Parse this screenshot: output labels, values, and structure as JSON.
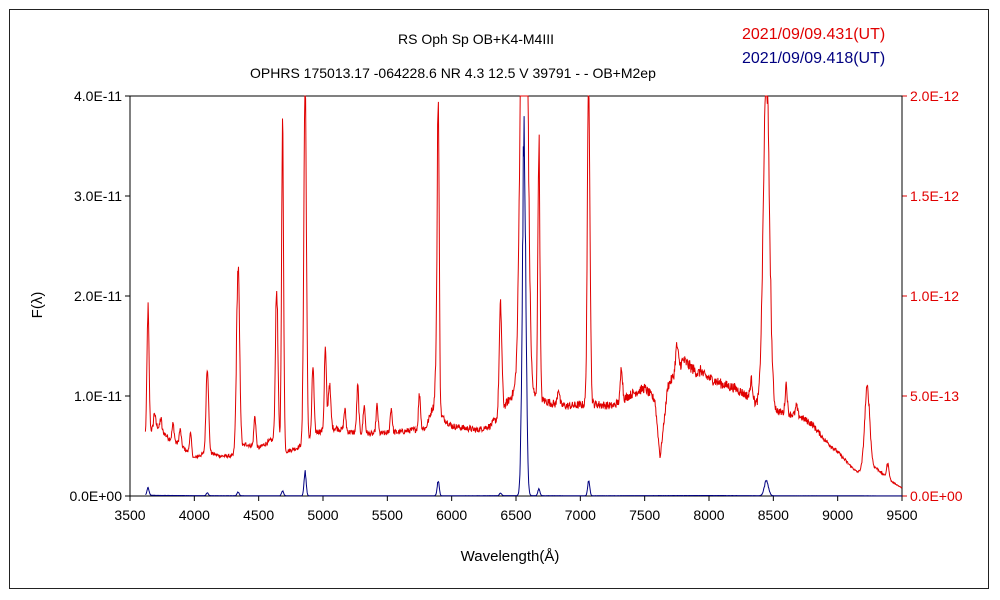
{
  "chart_data": {
    "type": "line",
    "title": "RS Oph    Sp OB+K4-M4III",
    "subtitle": "OPHRS 175013.17 -064228.6 NR 4.3 12.5 V 39791 - - OB+M2ep",
    "xlabel": "Wavelength(Å)",
    "ylabel": "F(λ)",
    "xlim": [
      3500,
      9500
    ],
    "ylim_left": [
      0,
      4e-11
    ],
    "ylim_right": [
      0,
      2e-12
    ],
    "x_ticks": [
      "3500",
      "4000",
      "4500",
      "5000",
      "5500",
      "6000",
      "6500",
      "7000",
      "7500",
      "8000",
      "8500",
      "9000",
      "9500"
    ],
    "y_left_ticks": [
      "0.0E+00",
      "1.0E-11",
      "2.0E-11",
      "3.0E-11",
      "4.0E-11"
    ],
    "y_right_ticks": [
      "0.0E+00",
      "5.0E-13",
      "1.0E-12",
      "1.5E-12",
      "2.0E-12"
    ],
    "grid": false,
    "legend": [
      {
        "label": "2021/09/09.431(UT)",
        "color": "#e00000",
        "axis": "right"
      },
      {
        "label": "2021/09/09.418(UT)",
        "color": "#000080",
        "axis": "left"
      }
    ],
    "series": [
      {
        "color": "#e00000",
        "axis": "right",
        "base": [
          [
            3620,
            2.9e-13
          ],
          [
            3700,
            3.6e-13
          ],
          [
            3800,
            2.9e-13
          ],
          [
            3900,
            2.5e-13
          ],
          [
            4000,
            1.9e-13
          ],
          [
            4100,
            2.2e-13
          ],
          [
            4200,
            2e-13
          ],
          [
            4300,
            2e-13
          ],
          [
            4400,
            2.6e-13
          ],
          [
            4500,
            2.4e-13
          ],
          [
            4600,
            2.8e-13
          ],
          [
            4700,
            2.2e-13
          ],
          [
            4800,
            2.4e-13
          ],
          [
            4950,
            3.2e-13
          ],
          [
            5100,
            3.4e-13
          ],
          [
            5200,
            3.2e-13
          ],
          [
            5400,
            3.1e-13
          ],
          [
            5600,
            3.2e-13
          ],
          [
            5800,
            3.4e-13
          ],
          [
            5850,
            4.4e-13
          ],
          [
            6000,
            3.5e-13
          ],
          [
            6200,
            3.3e-13
          ],
          [
            6300,
            3.5e-13
          ],
          [
            6400,
            4.4e-13
          ],
          [
            6500,
            5.3e-13
          ],
          [
            6700,
            4.8e-13
          ],
          [
            6800,
            4.6e-13
          ],
          [
            6900,
            4.5e-13
          ],
          [
            7100,
            4.6e-13
          ],
          [
            7250,
            4.5e-13
          ],
          [
            7400,
            5.1e-13
          ],
          [
            7500,
            5.4e-13
          ],
          [
            7580,
            4.8e-13
          ],
          [
            7620,
            1.9e-13
          ],
          [
            7680,
            5.5e-13
          ],
          [
            7800,
            6.8e-13
          ],
          [
            7900,
            6.2e-13
          ],
          [
            8000,
            5.9e-13
          ],
          [
            8100,
            5.6e-13
          ],
          [
            8200,
            5.4e-13
          ],
          [
            8300,
            5e-13
          ],
          [
            8400,
            4.4e-13
          ],
          [
            8550,
            4.2e-13
          ],
          [
            8700,
            4e-13
          ],
          [
            8800,
            3.6e-13
          ],
          [
            8900,
            2.8e-13
          ],
          [
            9000,
            2.2e-13
          ],
          [
            9100,
            1.5e-13
          ],
          [
            9150,
            1.2e-13
          ],
          [
            9300,
            1.4e-13
          ],
          [
            9400,
            8e-14
          ],
          [
            9500,
            4e-14
          ]
        ],
        "peaks": [
          [
            3640,
            9.4e-13,
            8
          ],
          [
            3690,
            4.2e-13,
            6
          ],
          [
            3740,
            3.9e-13,
            6
          ],
          [
            3835,
            3.6e-13,
            8
          ],
          [
            3890,
            3.3e-13,
            8
          ],
          [
            3970,
            3.1e-13,
            8
          ],
          [
            4101,
            6.5e-13,
            10
          ],
          [
            4340,
            1.14e-12,
            12
          ],
          [
            4471,
            4e-13,
            8
          ],
          [
            4640,
            1.03e-12,
            10
          ],
          [
            4686,
            1.84e-12,
            8
          ],
          [
            4861,
            2.1e-12,
            10
          ],
          [
            4922,
            6.5e-13,
            8
          ],
          [
            5018,
            7.3e-13,
            8
          ],
          [
            5050,
            5.6e-13,
            10
          ],
          [
            5170,
            4.3e-13,
            8
          ],
          [
            5270,
            5.5e-13,
            8
          ],
          [
            5320,
            4.5e-13,
            8
          ],
          [
            5420,
            4.5e-13,
            8
          ],
          [
            5530,
            4.4e-13,
            8
          ],
          [
            5750,
            5.1e-13,
            8
          ],
          [
            5876,
            5.8e-13,
            8
          ],
          [
            5895,
            2e-12,
            8
          ],
          [
            6347,
            3.8e-13,
            8
          ],
          [
            6380,
            9.5e-13,
            10
          ],
          [
            6563,
            4e-12,
            24
          ],
          [
            6678,
            1.78e-12,
            8
          ],
          [
            6830,
            5.4e-13,
            8
          ],
          [
            7065,
            2.1e-12,
            10
          ],
          [
            7320,
            6.5e-13,
            8
          ],
          [
            7750,
            7.5e-13,
            10
          ],
          [
            7940,
            6.3e-13,
            8
          ],
          [
            8330,
            5.8e-13,
            10
          ],
          [
            8446,
            2.1e-12,
            24
          ],
          [
            8600,
            5.6e-13,
            8
          ],
          [
            8680,
            4.5e-13,
            8
          ],
          [
            9230,
            5.4e-13,
            20
          ],
          [
            9390,
            1.6e-13,
            10
          ]
        ]
      },
      {
        "color": "#000080",
        "axis": "left",
        "base": [
          [
            3620,
            1e-13
          ],
          [
            3700,
            6e-14
          ],
          [
            4000,
            4e-14
          ],
          [
            4500,
            3e-14
          ],
          [
            5000,
            3e-14
          ],
          [
            5500,
            3e-14
          ],
          [
            6000,
            3e-14
          ],
          [
            6500,
            4e-14
          ],
          [
            7000,
            3e-14
          ],
          [
            7500,
            4e-14
          ],
          [
            8000,
            5e-14
          ],
          [
            8500,
            3e-14
          ],
          [
            9000,
            2e-14
          ],
          [
            9500,
            1e-14
          ]
        ],
        "peaks": [
          [
            3640,
            8e-13,
            8
          ],
          [
            4101,
            3e-13,
            8
          ],
          [
            4340,
            4e-13,
            8
          ],
          [
            4686,
            5e-13,
            8
          ],
          [
            4861,
            2.4e-12,
            8
          ],
          [
            5895,
            1.5e-12,
            8
          ],
          [
            6380,
            3e-13,
            8
          ],
          [
            6563,
            3.5e-11,
            14
          ],
          [
            6678,
            7e-13,
            8
          ],
          [
            7065,
            1.6e-12,
            8
          ],
          [
            8446,
            1.5e-12,
            16
          ]
        ]
      }
    ]
  }
}
